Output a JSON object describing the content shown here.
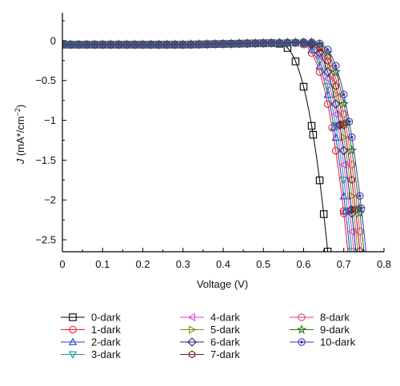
{
  "chart_data": {
    "type": "line",
    "title": "",
    "xlabel": "Voltage (V)",
    "ylabel": "J (mA*/cm⁻²)",
    "ylabel_parts": {
      "var": "J",
      "unit": " (mA*/cm",
      "sup": "−2",
      "close": ")"
    },
    "xlim": [
      0,
      0.8
    ],
    "ylim": [
      -2.65,
      0.35
    ],
    "xticks": [
      "0",
      "0.1",
      "0.2",
      "0.3",
      "0.4",
      "0.5",
      "0.6",
      "0.7",
      "0.8"
    ],
    "yticks": [
      "0",
      "−0.5",
      "−1",
      "−1.5",
      "−2",
      "−2.5"
    ],
    "grid": false,
    "legend_position": "bottom",
    "series": [
      {
        "name": "0-dark",
        "color": "#000000",
        "marker": "square",
        "voc": 0.66
      },
      {
        "name": "1-dark",
        "color": "#e8222a",
        "marker": "circle",
        "voc": 0.71
      },
      {
        "name": "2-dark",
        "color": "#2a3fd6",
        "marker": "triangle-up",
        "voc": 0.715
      },
      {
        "name": "3-dark",
        "color": "#1a9a8a",
        "marker": "triangle-down",
        "voc": 0.72
      },
      {
        "name": "4-dark",
        "color": "#e040d8",
        "marker": "triangle-left",
        "voc": 0.725
      },
      {
        "name": "5-dark",
        "color": "#8a8a10",
        "marker": "triangle-right",
        "voc": 0.735
      },
      {
        "name": "6-dark",
        "color": "#1e1e7a",
        "marker": "diamond",
        "voc": 0.73
      },
      {
        "name": "7-dark",
        "color": "#7a1a1a",
        "marker": "hexagon",
        "voc": 0.74
      },
      {
        "name": "8-dark",
        "color": "#e8406a",
        "marker": "circle",
        "voc": 0.745
      },
      {
        "name": "9-dark",
        "color": "#2a7a1a",
        "marker": "star",
        "voc": 0.75
      },
      {
        "name": "10-dark",
        "color": "#3a3ab0",
        "marker": "circle-dot",
        "voc": 0.755
      }
    ]
  }
}
